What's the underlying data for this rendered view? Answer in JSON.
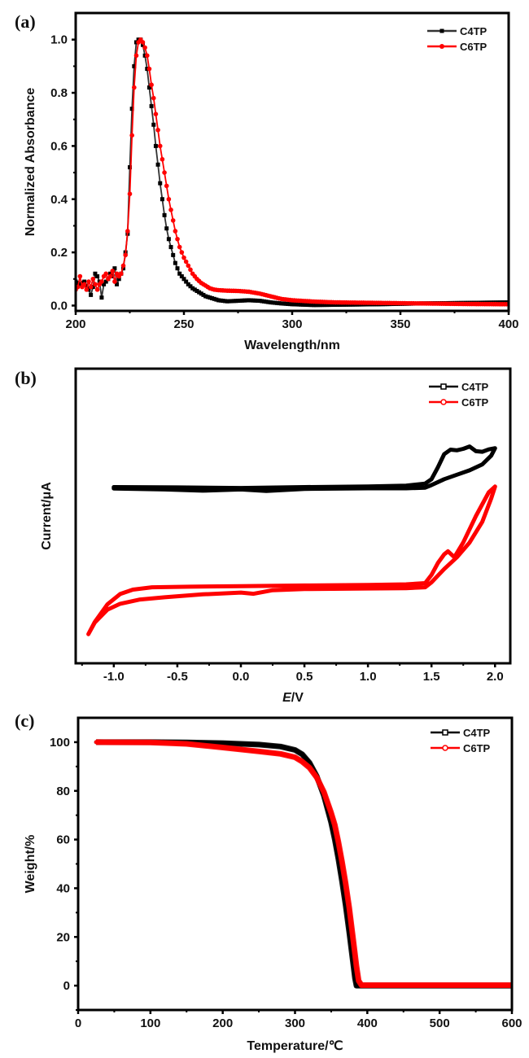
{
  "chart_data": [
    {
      "panel": "(a)",
      "type": "line",
      "title": "",
      "xlabel": "Wavelength/nm",
      "ylabel": "Normalized Absorbance",
      "xlim": [
        200,
        400
      ],
      "ylim": [
        -0.02,
        1.1
      ],
      "xticks": [
        200,
        250,
        300,
        350,
        400
      ],
      "xtick_labels": [
        "200",
        "250",
        "300",
        "350",
        "400"
      ],
      "yticks": [
        0.0,
        0.2,
        0.4,
        0.6,
        0.8,
        1.0
      ],
      "ytick_labels": [
        "0.0",
        "0.2",
        "0.4",
        "0.6",
        "0.8",
        "1.0"
      ],
      "grid": false,
      "legend_position": "top-right",
      "series": [
        {
          "name": "C4TP",
          "color": "#000000",
          "marker": "square-filled",
          "x": [
            200,
            202,
            204,
            206,
            207,
            208,
            209,
            210,
            211,
            212,
            213,
            214,
            215,
            216,
            217,
            218,
            219,
            220,
            221,
            222,
            223,
            224,
            225,
            226,
            227,
            228,
            229,
            230,
            231,
            232,
            233,
            234,
            235,
            236,
            237,
            238,
            239,
            240,
            241,
            242,
            243,
            244,
            245,
            246,
            247,
            248,
            249,
            250,
            252,
            254,
            256,
            258,
            260,
            262,
            264,
            266,
            268,
            270,
            275,
            280,
            285,
            290,
            295,
            300,
            310,
            320,
            340,
            360,
            380,
            400
          ],
          "y": [
            0.09,
            0.08,
            0.09,
            0.06,
            0.04,
            0.07,
            0.12,
            0.11,
            0.09,
            0.03,
            0.08,
            0.09,
            0.1,
            0.12,
            0.11,
            0.14,
            0.08,
            0.1,
            0.12,
            0.14,
            0.2,
            0.27,
            0.52,
            0.74,
            0.9,
            0.99,
            1.0,
            1.0,
            0.98,
            0.94,
            0.89,
            0.82,
            0.75,
            0.68,
            0.6,
            0.53,
            0.46,
            0.4,
            0.34,
            0.29,
            0.25,
            0.22,
            0.19,
            0.16,
            0.14,
            0.12,
            0.11,
            0.1,
            0.08,
            0.065,
            0.055,
            0.045,
            0.035,
            0.03,
            0.025,
            0.02,
            0.018,
            0.016,
            0.018,
            0.02,
            0.018,
            0.012,
            0.008,
            0.005,
            0.002,
            0.003,
            0.005,
            0.008,
            0.01,
            0.012
          ]
        },
        {
          "name": "C6TP",
          "color": "#ff0000",
          "marker": "circle-filled",
          "x": [
            200,
            201,
            202,
            203,
            204,
            205,
            206,
            207,
            208,
            209,
            210,
            211,
            212,
            213,
            214,
            215,
            216,
            217,
            218,
            219,
            220,
            221,
            222,
            223,
            224,
            225,
            226,
            227,
            228,
            229,
            230,
            231,
            232,
            233,
            234,
            235,
            236,
            237,
            238,
            239,
            240,
            241,
            242,
            243,
            244,
            245,
            246,
            247,
            248,
            249,
            250,
            252,
            254,
            256,
            258,
            260,
            262,
            264,
            266,
            268,
            270,
            275,
            280,
            285,
            290,
            295,
            300,
            310,
            320,
            340,
            360,
            380,
            400
          ],
          "y": [
            0.06,
            0.07,
            0.11,
            0.07,
            0.08,
            0.06,
            0.09,
            0.07,
            0.1,
            0.08,
            0.06,
            0.08,
            0.09,
            0.11,
            0.12,
            0.1,
            0.11,
            0.13,
            0.09,
            0.12,
            0.11,
            0.12,
            0.15,
            0.19,
            0.28,
            0.42,
            0.64,
            0.82,
            0.94,
            0.99,
            1.0,
            0.99,
            0.97,
            0.94,
            0.89,
            0.83,
            0.78,
            0.72,
            0.66,
            0.6,
            0.55,
            0.5,
            0.45,
            0.4,
            0.36,
            0.32,
            0.28,
            0.25,
            0.22,
            0.2,
            0.18,
            0.15,
            0.12,
            0.1,
            0.085,
            0.075,
            0.065,
            0.06,
            0.058,
            0.057,
            0.056,
            0.055,
            0.052,
            0.045,
            0.035,
            0.025,
            0.02,
            0.015,
            0.012,
            0.01,
            0.008,
            0.006,
            0.005
          ]
        }
      ]
    },
    {
      "panel": "(b)",
      "type": "line",
      "title": "",
      "xlabel_italic": "E",
      "xlabel_rest": "/V",
      "ylabel": "Current/μA",
      "xlim": [
        -1.3,
        2.12
      ],
      "ylim": [
        0,
        100
      ],
      "y_units_note": "relative (no y tick labels shown)",
      "xticks": [
        -1.0,
        -0.5,
        0.0,
        0.5,
        1.0,
        1.5,
        2.0
      ],
      "xtick_labels": [
        "-1.0",
        "-0.5",
        "0.0",
        "0.5",
        "1.0",
        "1.5",
        "2.0"
      ],
      "grid": false,
      "legend_position": "top-right",
      "series": [
        {
          "name": "C4TP",
          "color": "#000000",
          "marker": "square-open",
          "x": [
            0.0,
            0.5,
            1.0,
            1.3,
            1.45,
            1.5,
            1.55,
            1.6,
            1.65,
            1.7,
            1.75,
            1.8,
            1.85,
            1.9,
            1.95,
            2.0,
            1.97,
            1.9,
            1.8,
            1.7,
            1.6,
            1.5,
            1.45,
            1.3,
            1.0,
            0.5,
            0.2,
            0.0,
            -0.3,
            -0.6,
            -1.0,
            -1.0,
            -0.5,
            0.0
          ],
          "y": [
            59.5,
            59.8,
            60.0,
            60.3,
            61.0,
            62.5,
            66.5,
            71.0,
            72.5,
            72.3,
            72.8,
            73.6,
            72.0,
            71.8,
            72.6,
            73.0,
            70.5,
            67.5,
            65.5,
            64.0,
            62.5,
            60.5,
            59.6,
            59.4,
            59.4,
            59.2,
            58.5,
            59.0,
            58.6,
            59.0,
            59.3,
            59.8,
            59.7,
            59.5
          ]
        },
        {
          "name": "C6TP",
          "color": "#ff0000",
          "marker": "circle-open",
          "x": [
            0.0,
            0.5,
            1.0,
            1.3,
            1.45,
            1.5,
            1.55,
            1.6,
            1.63,
            1.68,
            1.75,
            1.85,
            1.95,
            2.0,
            1.97,
            1.9,
            1.8,
            1.7,
            1.6,
            1.5,
            1.45,
            1.3,
            1.0,
            0.5,
            0.25,
            0.1,
            0.0,
            -0.3,
            -0.6,
            -0.8,
            -0.95,
            -1.05,
            -1.15,
            -1.2,
            -1.15,
            -1.05,
            -0.95,
            -0.85,
            -0.7,
            -0.4,
            0.0
          ],
          "y": [
            26.2,
            26.4,
            26.6,
            26.8,
            27.2,
            30.0,
            34.0,
            37.0,
            38.0,
            36.0,
            41.0,
            50.0,
            58.0,
            60.0,
            56.0,
            48.0,
            41.0,
            36.0,
            32.0,
            27.5,
            25.8,
            25.5,
            25.4,
            25.2,
            24.8,
            23.6,
            24.0,
            23.4,
            22.4,
            21.6,
            20.2,
            18.2,
            13.8,
            9.9,
            14.0,
            20.0,
            23.5,
            25.0,
            25.8,
            26.0,
            26.2
          ]
        }
      ]
    },
    {
      "panel": "(c)",
      "type": "line",
      "title": "",
      "xlabel": "Temperature/℃",
      "ylabel": "Weight/%",
      "xlim": [
        0,
        600
      ],
      "ylim": [
        -10,
        110
      ],
      "xticks": [
        0,
        100,
        200,
        300,
        400,
        500,
        600
      ],
      "xtick_labels": [
        "0",
        "100",
        "200",
        "300",
        "400",
        "500",
        "600"
      ],
      "yticks": [
        0,
        20,
        40,
        60,
        80,
        100
      ],
      "ytick_labels": [
        "0",
        "20",
        "40",
        "60",
        "80",
        "100"
      ],
      "grid": false,
      "legend_position": "top-right",
      "series": [
        {
          "name": "C4TP",
          "color": "#000000",
          "marker": "square-open",
          "x": [
            25,
            100,
            150,
            200,
            250,
            280,
            300,
            310,
            320,
            330,
            340,
            350,
            355,
            360,
            365,
            370,
            375,
            380,
            383,
            385,
            390,
            400,
            450,
            500,
            550,
            600
          ],
          "y": [
            100,
            100,
            99.9,
            99.6,
            99.0,
            98.2,
            96.8,
            95.0,
            91.5,
            86.0,
            78.0,
            67.0,
            60.0,
            52.0,
            43.0,
            33.0,
            22.0,
            10.0,
            3.0,
            0.0,
            0.0,
            0.0,
            0.0,
            0.0,
            0.0,
            0.0
          ]
        },
        {
          "name": "C6TP",
          "color": "#ff0000",
          "marker": "circle-open",
          "x": [
            25,
            100,
            150,
            200,
            250,
            280,
            300,
            310,
            320,
            330,
            340,
            350,
            355,
            360,
            365,
            370,
            375,
            380,
            385,
            388,
            392,
            400,
            450,
            500,
            550,
            600
          ],
          "y": [
            100,
            99.9,
            99.3,
            97.8,
            96.2,
            95.2,
            93.8,
            92.0,
            89.5,
            85.5,
            79.5,
            71.0,
            66.0,
            59.0,
            51.0,
            42.0,
            32.0,
            20.0,
            8.0,
            2.0,
            0.2,
            0.2,
            0.2,
            0.2,
            0.2,
            0.2
          ]
        }
      ]
    }
  ]
}
